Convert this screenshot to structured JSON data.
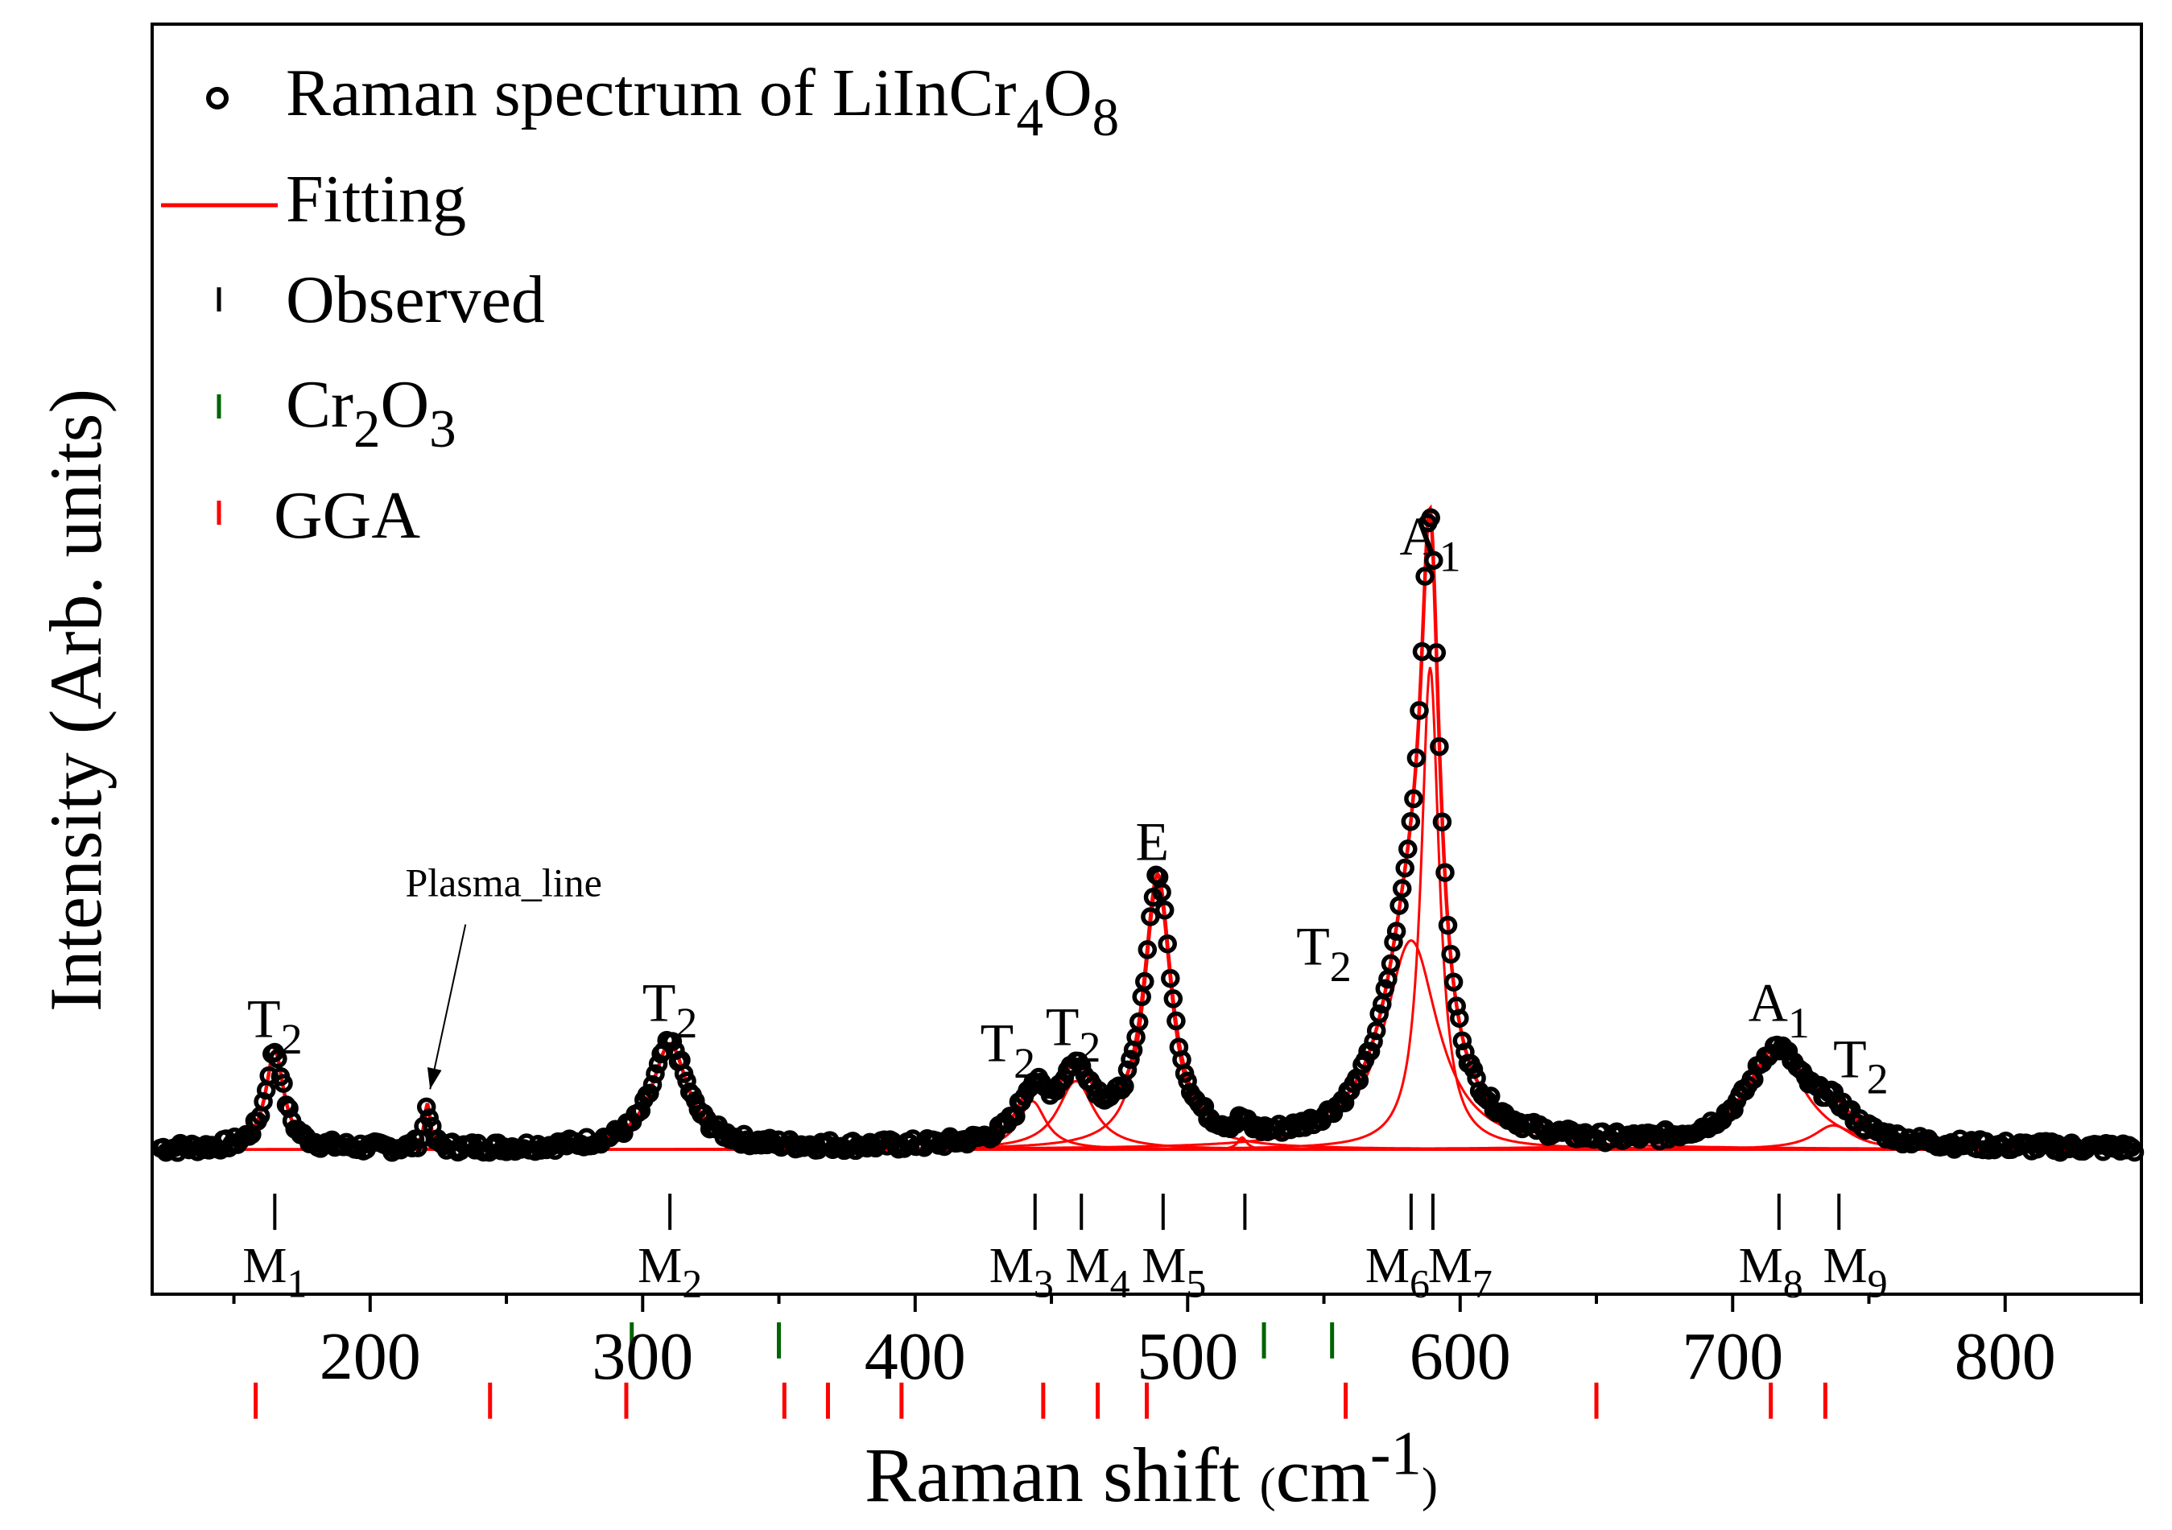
{
  "chart_data": {
    "type": "scatter",
    "title": "",
    "xlabel": "Raman shift",
    "xlabel_unit_prefix": "(",
    "xlabel_unit_main": "cm",
    "xlabel_unit_sup": "-1",
    "xlabel_unit_suffix": ")",
    "ylabel": "Intensity (Arb. units)",
    "xlim": [
      120,
      850
    ],
    "ylim": [
      -0.18,
      1.4
    ],
    "x_ticks": [
      200,
      300,
      400,
      500,
      600,
      700,
      800
    ],
    "x_tick_labels": [
      "200",
      "300",
      "400",
      "500",
      "600",
      "700",
      "800"
    ],
    "colors": {
      "observed": "#000000",
      "fit": "#ff0000",
      "cr2o3": "#006400",
      "gga": "#ff0000"
    },
    "legend": {
      "placement": "top-left",
      "spectrum": {
        "text": "Raman spectrum of LiInCr",
        "sub1": "4",
        "mid": "O",
        "sub2": "8"
      },
      "fitting": "Fitting",
      "observed": "Observed",
      "cr2o3": {
        "a": "Cr",
        "sub1": "2",
        "b": "O",
        "sub2": "3"
      },
      "gga": "GGA"
    },
    "peaks": [
      {
        "center": 165,
        "amp": 0.122,
        "width": 4
      },
      {
        "center": 221,
        "amp": 0.055,
        "width": 1.3
      },
      {
        "center": 310,
        "amp": 0.13,
        "width": 8
      },
      {
        "center": 443,
        "amp": 0.06,
        "width": 6
      },
      {
        "center": 459,
        "amp": 0.085,
        "width": 8
      },
      {
        "center": 489,
        "amp": 0.33,
        "width": 6
      },
      {
        "center": 520,
        "amp": 0.015,
        "width": 2
      },
      {
        "center": 582,
        "amp": 0.26,
        "width": 12
      },
      {
        "center": 589,
        "amp": 0.6,
        "width": 4
      },
      {
        "center": 716,
        "amp": 0.12,
        "width": 13
      },
      {
        "center": 737,
        "amp": 0.03,
        "width": 9
      }
    ],
    "mode_labels": [
      {
        "text": "T",
        "sub": "2",
        "x": 165,
        "y": 0.14
      },
      {
        "text": "T",
        "sub": "2",
        "x": 310,
        "y": 0.16
      },
      {
        "text": "T",
        "sub": "2",
        "x": 434,
        "y": 0.11
      },
      {
        "text": "T",
        "sub": "2",
        "x": 458,
        "y": 0.13
      },
      {
        "text": "E",
        "sub": "",
        "x": 487,
        "y": 0.36
      },
      {
        "text": "T",
        "sub": "2",
        "x": 550,
        "y": 0.23
      },
      {
        "text": "A",
        "sub": "1",
        "x": 589,
        "y": 0.74
      },
      {
        "text": "A",
        "sub": "1",
        "x": 717,
        "y": 0.16
      },
      {
        "text": "T",
        "sub": "2",
        "x": 747,
        "y": 0.09
      }
    ],
    "plasma_annotation": {
      "text": "Plasma_line",
      "text_x": 249,
      "text_y": 0.315,
      "arrow_from": [
        235,
        0.28
      ],
      "arrow_to": [
        222,
        0.075
      ]
    },
    "observed_markers": [
      165,
      310,
      444,
      461,
      491,
      521,
      582,
      590,
      717,
      739
    ],
    "observed_marker_y": [
      -0.055,
      -0.1
    ],
    "m_labels": [
      {
        "text": "M",
        "sub": "1",
        "x": 165
      },
      {
        "text": "M",
        "sub": "2",
        "x": 310
      },
      {
        "text": "M",
        "sub": "3",
        "x": 439
      },
      {
        "text": "M",
        "sub": "4",
        "x": 467
      },
      {
        "text": "M",
        "sub": "5",
        "x": 495
      },
      {
        "text": "M",
        "sub": "6",
        "x": 577
      },
      {
        "text": "M",
        "sub": "7",
        "x": 600
      },
      {
        "text": "M",
        "sub": "8",
        "x": 714
      },
      {
        "text": "M",
        "sub": "9",
        "x": 745
      }
    ],
    "m_label_y": -0.165,
    "cr2o3_markers": [
      296,
      350,
      528,
      553
    ],
    "cr2o3_marker_y": [
      -0.215,
      -0.26
    ],
    "gga_markers": [
      158,
      244,
      294,
      352,
      368,
      395,
      447,
      467,
      485,
      558,
      650,
      714,
      734
    ],
    "gga_marker_y": [
      -0.29,
      -0.335
    ]
  }
}
